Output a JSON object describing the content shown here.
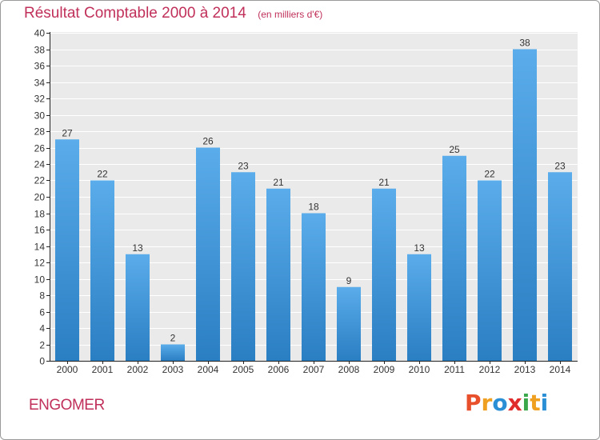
{
  "title": "Résultat Comptable 2000 à 2014",
  "unit": "(en milliers d'€)",
  "commune": "ENGOMER",
  "logo": {
    "text": "Proxiti",
    "letters": [
      {
        "ch": "P",
        "color": "#e8502c"
      },
      {
        "ch": "r",
        "color": "#f0a020"
      },
      {
        "ch": "o",
        "color": "#2b8fd6"
      },
      {
        "ch": "x",
        "color": "#e02c2c"
      },
      {
        "ch": "i",
        "color": "#3aa84a"
      },
      {
        "ch": "t",
        "color": "#f0a020"
      },
      {
        "ch": "i",
        "color": "#2b8fd6"
      }
    ]
  },
  "colors": {
    "bar_top": "#5aacea",
    "bar_bottom": "#2a7ec2",
    "plot_bg": "#eaeaea",
    "grid": "#ffffff",
    "axis": "#222222",
    "title": "#c0305a"
  },
  "chart_data": {
    "type": "bar",
    "title": "Résultat Comptable 2000 à 2014",
    "subtitle": "(en milliers d'€)",
    "categories": [
      "2000",
      "2001",
      "2002",
      "2003",
      "2004",
      "2005",
      "2006",
      "2007",
      "2008",
      "2009",
      "2010",
      "2011",
      "2012",
      "2013",
      "2014"
    ],
    "values": [
      27,
      22,
      13,
      2,
      26,
      23,
      21,
      18,
      9,
      21,
      13,
      25,
      22,
      38,
      23
    ],
    "ylim": [
      0,
      40
    ],
    "ytick_step": 2,
    "grid": true,
    "data_labels": true,
    "xlabel": "",
    "ylabel": ""
  }
}
